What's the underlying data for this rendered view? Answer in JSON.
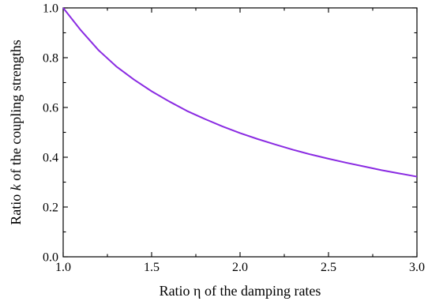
{
  "chart_data": {
    "type": "line",
    "xlabel": "Ratio η of the damping rates",
    "ylabel_parts": [
      "Ratio ",
      "k",
      " of the coupling strengths"
    ],
    "xlim": [
      1.0,
      3.0
    ],
    "ylim": [
      0.0,
      1.0
    ],
    "x_ticks": [
      "1.0",
      "1.5",
      "2.0",
      "2.5",
      "3.0"
    ],
    "y_ticks": [
      "0.0",
      "0.2",
      "0.4",
      "0.6",
      "0.8",
      "1.0"
    ],
    "grid": false,
    "series": [
      {
        "color": "#8a2be2",
        "x": [
          1.0,
          1.1,
          1.2,
          1.3,
          1.4,
          1.5,
          1.6,
          1.7,
          1.8,
          1.9,
          2.0,
          2.1,
          2.2,
          2.3,
          2.4,
          2.5,
          2.6,
          2.7,
          2.8,
          2.9,
          3.0
        ],
        "y": [
          1.0,
          0.91,
          0.83,
          0.765,
          0.712,
          0.665,
          0.624,
          0.586,
          0.554,
          0.524,
          0.497,
          0.473,
          0.451,
          0.43,
          0.411,
          0.394,
          0.378,
          0.363,
          0.348,
          0.335,
          0.322
        ]
      }
    ]
  }
}
